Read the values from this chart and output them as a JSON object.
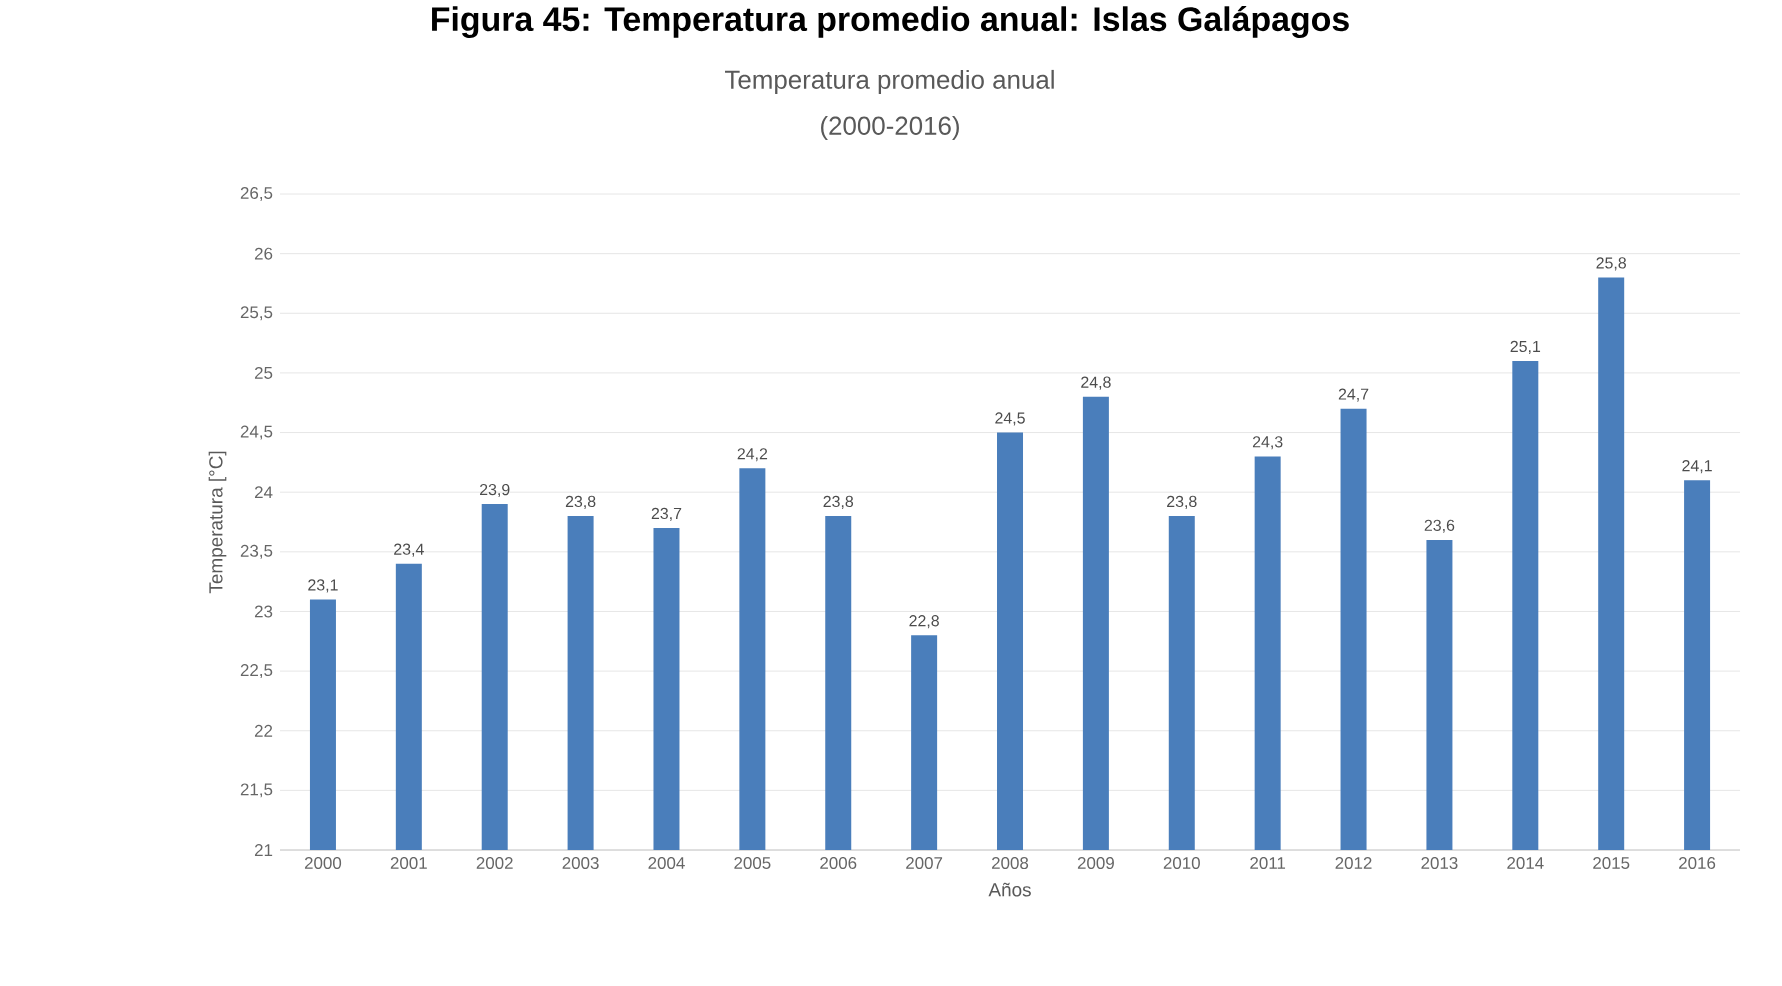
{
  "chart_data": {
    "type": "bar",
    "title": "Temperatura promedio anual",
    "subtitle": "(2000-2016)",
    "xlabel": "Años",
    "ylabel": "Temperatura [°C]",
    "annotations": [
      "Figura 45: Temperatura promedio anual: Islas Galápagos"
    ],
    "categories": [
      "2000",
      "2001",
      "2002",
      "2003",
      "2004",
      "2005",
      "2006",
      "2007",
      "2008",
      "2009",
      "2010",
      "2011",
      "2012",
      "2013",
      "2014",
      "2015",
      "2016"
    ],
    "values": [
      23.1,
      23.4,
      23.9,
      23.8,
      23.7,
      24.2,
      23.8,
      22.8,
      24.5,
      24.8,
      23.8,
      24.3,
      24.7,
      23.6,
      25.1,
      25.8,
      24.1
    ],
    "value_labels": [
      "23,1",
      "23,4",
      "23,9",
      "23,8",
      "23,7",
      "24,2",
      "23,8",
      "22,8",
      "24,5",
      "24,8",
      "23,8",
      "24,3",
      "24,7",
      "23,6",
      "25,1",
      "25,8",
      "24,1"
    ],
    "color": "#4a7ebb",
    "ylim": [
      21,
      26.5
    ],
    "yticks": [
      21,
      {
        "value": 21.5,
        "label": "21,5"
      },
      22,
      {
        "value": 22.5,
        "label": "22,5"
      },
      23,
      {
        "value": 23.5,
        "label": "23,5"
      },
      24,
      {
        "value": 24.5,
        "label": "24,5"
      },
      25,
      {
        "value": 25.5,
        "label": "25,5"
      },
      26,
      {
        "value": 26.5,
        "label": "26,5"
      }
    ],
    "grid": "y"
  }
}
